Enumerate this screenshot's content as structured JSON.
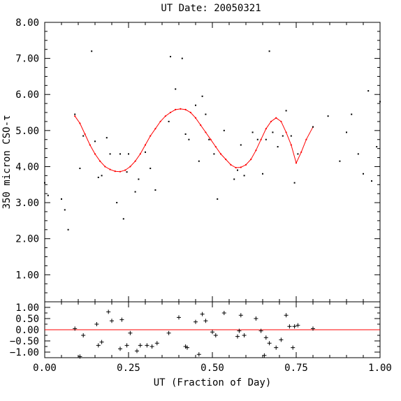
{
  "chart_data": [
    {
      "type": "scatter",
      "title": "UT Date: 20050321",
      "xlabel": "",
      "ylabel": "350 micron CSO-τ",
      "xlim": [
        0.0,
        1.0
      ],
      "ylim": [
        0.25,
        8.0
      ],
      "y_ticks": [
        "1.00",
        "2.00",
        "3.00",
        "4.00",
        "5.00",
        "6.00",
        "7.00",
        "8.00"
      ],
      "grid": false,
      "points": {
        "x": [
          0.0,
          0.01,
          0.05,
          0.06,
          0.07,
          0.09,
          0.105,
          0.115,
          0.14,
          0.15,
          0.16,
          0.17,
          0.185,
          0.195,
          0.215,
          0.225,
          0.235,
          0.245,
          0.25,
          0.27,
          0.28,
          0.3,
          0.315,
          0.33,
          0.37,
          0.375,
          0.39,
          0.41,
          0.42,
          0.43,
          0.45,
          0.46,
          0.47,
          0.48,
          0.49,
          0.505,
          0.515,
          0.535,
          0.565,
          0.575,
          0.585,
          0.595,
          0.62,
          0.635,
          0.65,
          0.66,
          0.67,
          0.68,
          0.695,
          0.71,
          0.72,
          0.735,
          0.745,
          0.755,
          0.8,
          0.845,
          0.88,
          0.9,
          0.915,
          0.935,
          0.95,
          0.965,
          0.975,
          0.99,
          1.0
        ],
        "y": [
          3.55,
          3.2,
          3.1,
          2.8,
          2.25,
          5.45,
          3.95,
          4.85,
          7.2,
          4.7,
          3.7,
          3.75,
          4.8,
          4.35,
          3.0,
          4.35,
          2.55,
          3.85,
          4.35,
          3.3,
          3.65,
          4.4,
          3.95,
          3.35,
          5.25,
          7.05,
          6.15,
          7.0,
          4.9,
          4.75,
          5.7,
          4.15,
          5.95,
          5.45,
          4.75,
          4.35,
          3.1,
          5.0,
          3.65,
          3.9,
          4.6,
          3.75,
          4.95,
          4.75,
          3.8,
          4.75,
          7.2,
          4.95,
          4.55,
          4.85,
          5.55,
          4.85,
          3.55,
          4.35,
          5.1,
          5.4,
          4.15,
          4.95,
          5.45,
          4.35,
          3.8,
          6.1,
          3.6,
          4.55,
          5.8
        ]
      },
      "fit_curve": {
        "x": [
          0.09,
          0.105,
          0.12,
          0.135,
          0.15,
          0.165,
          0.18,
          0.195,
          0.21,
          0.225,
          0.24,
          0.255,
          0.27,
          0.285,
          0.3,
          0.315,
          0.33,
          0.345,
          0.36,
          0.375,
          0.39,
          0.405,
          0.42,
          0.435,
          0.45,
          0.465,
          0.48,
          0.495,
          0.51,
          0.525,
          0.54,
          0.555,
          0.57,
          0.585,
          0.6,
          0.615,
          0.63,
          0.645,
          0.66,
          0.675,
          0.69,
          0.705,
          0.72,
          0.735,
          0.75,
          0.765,
          0.78,
          0.8
        ],
        "y": [
          5.4,
          5.2,
          4.9,
          4.6,
          4.35,
          4.15,
          4.0,
          3.92,
          3.87,
          3.86,
          3.9,
          4.0,
          4.15,
          4.35,
          4.6,
          4.85,
          5.05,
          5.25,
          5.4,
          5.5,
          5.58,
          5.6,
          5.58,
          5.5,
          5.35,
          5.15,
          4.95,
          4.75,
          4.55,
          4.35,
          4.2,
          4.05,
          3.97,
          3.98,
          4.05,
          4.2,
          4.45,
          4.75,
          5.05,
          5.25,
          5.35,
          5.25,
          4.95,
          4.6,
          4.1,
          4.4,
          4.75,
          5.1
        ]
      },
      "color_fit": "#ff0000"
    },
    {
      "type": "scatter",
      "title": "",
      "xlabel": "UT (Fraction of Day)",
      "ylabel": "",
      "xlim": [
        0.0,
        1.0
      ],
      "ylim": [
        -1.25,
        1.25
      ],
      "x_ticks": [
        "0.00",
        "0.25",
        "0.50",
        "0.75",
        "1.00"
      ],
      "y_ticks": [
        "1.00",
        "0.50",
        "0.00",
        "−0.50",
        "−1.00"
      ],
      "zero_line": 0.0,
      "color_zero": "#ff0000",
      "residuals": {
        "x": [
          0.09,
          0.105,
          0.115,
          0.155,
          0.16,
          0.17,
          0.19,
          0.2,
          0.225,
          0.23,
          0.245,
          0.255,
          0.275,
          0.285,
          0.305,
          0.32,
          0.335,
          0.37,
          0.4,
          0.42,
          0.425,
          0.45,
          0.46,
          0.47,
          0.48,
          0.5,
          0.51,
          0.535,
          0.575,
          0.58,
          0.585,
          0.595,
          0.63,
          0.645,
          0.655,
          0.66,
          0.67,
          0.69,
          0.705,
          0.72,
          0.73,
          0.74,
          0.745,
          0.755,
          0.8
        ],
        "y": [
          0.05,
          -1.2,
          -0.25,
          0.25,
          -0.7,
          -0.55,
          0.8,
          0.4,
          -0.85,
          0.45,
          -0.7,
          -0.15,
          -0.95,
          -0.7,
          -0.7,
          -0.75,
          -0.6,
          -0.15,
          0.55,
          -0.75,
          -0.8,
          0.35,
          -1.1,
          0.7,
          0.4,
          -0.1,
          -0.25,
          0.75,
          -0.3,
          -0.05,
          0.65,
          -0.25,
          0.5,
          -0.05,
          -1.15,
          -0.35,
          -0.6,
          -0.8,
          -0.45,
          0.65,
          0.15,
          -0.8,
          0.15,
          0.2,
          0.05
        ]
      }
    }
  ]
}
